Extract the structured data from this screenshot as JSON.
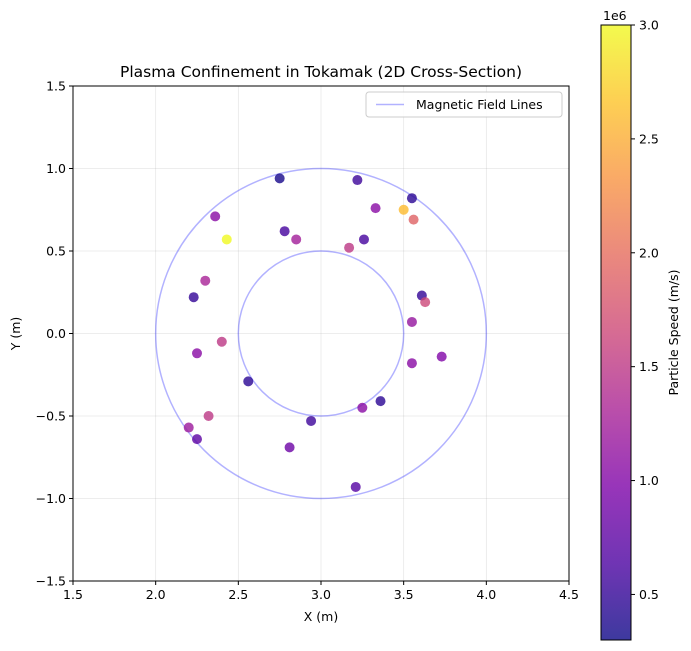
{
  "chart_data": {
    "type": "scatter",
    "title": "Plasma Confinement in Tokamak (2D Cross-Section)",
    "xlabel": "X (m)",
    "ylabel": "Y (m)",
    "xlim": [
      1.5,
      4.5
    ],
    "ylim": [
      -1.5,
      1.5
    ],
    "xticks": [
      "1.5",
      "2.0",
      "2.5",
      "3.0",
      "3.5",
      "4.0",
      "4.5"
    ],
    "yticks": [
      "−1.5",
      "−1.0",
      "−0.5",
      "0.0",
      "0.5",
      "1.0",
      "1.5"
    ],
    "grid": true,
    "legend": {
      "position": "top-right",
      "label": "Magnetic Field Lines",
      "color": "#0000ff"
    },
    "field_lines": [
      {
        "cx": 3.0,
        "cy": 0.0,
        "r": 1.0
      },
      {
        "cx": 3.0,
        "cy": 0.0,
        "r": 0.5
      }
    ],
    "colorbar": {
      "label": "Particle Speed (m/s)",
      "multiplier": "1e6",
      "range": [
        0.3,
        3.0
      ],
      "ticks": [
        "0.5",
        "1.0",
        "1.5",
        "2.0",
        "2.5",
        "3.0"
      ],
      "colormap": "plasma"
    },
    "points": [
      {
        "x": 2.75,
        "y": 0.94,
        "speed": 0.35
      },
      {
        "x": 3.22,
        "y": 0.93,
        "speed": 0.55
      },
      {
        "x": 3.55,
        "y": 0.82,
        "speed": 0.45
      },
      {
        "x": 3.33,
        "y": 0.76,
        "speed": 1.05
      },
      {
        "x": 3.5,
        "y": 0.75,
        "speed": 2.6
      },
      {
        "x": 3.56,
        "y": 0.69,
        "speed": 1.9
      },
      {
        "x": 2.36,
        "y": 0.71,
        "speed": 1.05
      },
      {
        "x": 2.43,
        "y": 0.57,
        "speed": 3.0
      },
      {
        "x": 2.78,
        "y": 0.62,
        "speed": 0.6
      },
      {
        "x": 2.85,
        "y": 0.57,
        "speed": 1.25
      },
      {
        "x": 3.17,
        "y": 0.52,
        "speed": 1.5
      },
      {
        "x": 3.26,
        "y": 0.57,
        "speed": 0.6
      },
      {
        "x": 2.3,
        "y": 0.32,
        "speed": 1.3
      },
      {
        "x": 2.23,
        "y": 0.22,
        "speed": 0.5
      },
      {
        "x": 3.61,
        "y": 0.23,
        "speed": 0.5
      },
      {
        "x": 3.63,
        "y": 0.19,
        "speed": 1.65
      },
      {
        "x": 3.55,
        "y": 0.07,
        "speed": 1.15
      },
      {
        "x": 2.4,
        "y": -0.05,
        "speed": 1.5
      },
      {
        "x": 2.25,
        "y": -0.12,
        "speed": 1.05
      },
      {
        "x": 3.55,
        "y": -0.18,
        "speed": 1.05
      },
      {
        "x": 3.73,
        "y": -0.14,
        "speed": 1.0
      },
      {
        "x": 2.56,
        "y": -0.29,
        "speed": 0.45
      },
      {
        "x": 3.36,
        "y": -0.41,
        "speed": 0.45
      },
      {
        "x": 3.25,
        "y": -0.45,
        "speed": 1.05
      },
      {
        "x": 2.32,
        "y": -0.5,
        "speed": 1.5
      },
      {
        "x": 2.94,
        "y": -0.53,
        "speed": 0.55
      },
      {
        "x": 2.2,
        "y": -0.57,
        "speed": 1.2
      },
      {
        "x": 2.25,
        "y": -0.64,
        "speed": 0.75
      },
      {
        "x": 2.81,
        "y": -0.69,
        "speed": 0.85
      },
      {
        "x": 3.21,
        "y": -0.93,
        "speed": 0.7
      }
    ]
  }
}
